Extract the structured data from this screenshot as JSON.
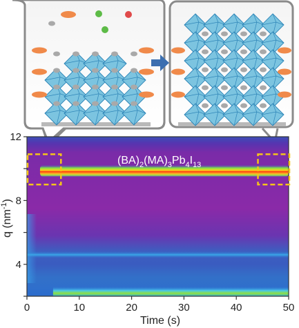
{
  "chart_data": {
    "type": "heatmap",
    "title": "",
    "annotation": {
      "base": "(BA)",
      "s1": "2",
      "m1": "(MA)",
      "s2": "3",
      "m2": "Pb",
      "s3": "4",
      "m3": "I",
      "s4": "13"
    },
    "xlabel": "Time (s)",
    "ylabel": {
      "base": "q (nm",
      "sup": "-1",
      "tail": ")"
    },
    "xlim": [
      0,
      50
    ],
    "ylim": [
      2,
      12
    ],
    "x_ticks": [
      "0",
      "10",
      "20",
      "30",
      "40",
      "50"
    ],
    "y_ticks": [
      "4",
      "8",
      "12"
    ],
    "bands": [
      {
        "q": 9.85,
        "t_start": 2.5,
        "t_end": 50,
        "intensity": "high",
        "color": "#ff3010"
      },
      {
        "q": 9.55,
        "t_start": 2.5,
        "t_end": 50,
        "intensity": "medium",
        "color": "#9ce84a"
      },
      {
        "q": 4.6,
        "t_start": 0,
        "t_end": 50,
        "intensity": "low",
        "color": "#3b8fe0"
      },
      {
        "q": 2.3,
        "t_start": 5,
        "t_end": 50,
        "intensity": "medium",
        "color": "#7ee040"
      }
    ],
    "colormap": {
      "background": "#8a2aa8",
      "low": "#3a5fc8",
      "high": "#ff2010"
    },
    "highlight_boxes": [
      {
        "t_range": [
          0,
          6.5
        ],
        "q_range": [
          9.0,
          10.9
        ]
      },
      {
        "t_range": [
          44,
          50
        ],
        "q_range": [
          9.0,
          10.9
        ]
      }
    ],
    "insets": [
      {
        "name": "initial",
        "description_hidden": true
      },
      {
        "name": "final",
        "description_hidden": true
      }
    ],
    "arrow_color": "#3c6fb0",
    "octahedron_color": "#7cc4e0",
    "molecule_color": "#f08a4a"
  }
}
